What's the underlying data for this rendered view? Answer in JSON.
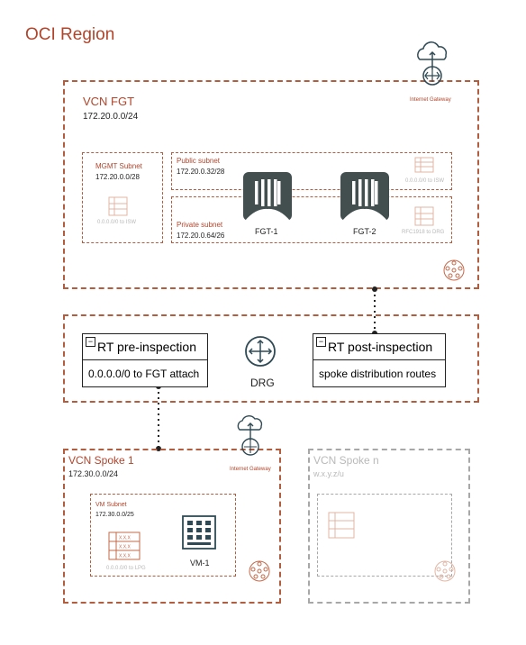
{
  "region": {
    "title": "OCI Region"
  },
  "vcn_fgt": {
    "title": "VCN FGT",
    "cidr": "172.20.0.0/24",
    "internet_gateway_label": "Internet Gateway",
    "mgmt_subnet": {
      "title": "MGMT Subnet",
      "cidr": "172.20.0.0/28",
      "route": "0.0.0.0/0 to ISW"
    },
    "public_subnet": {
      "title": "Public subnet",
      "cidr": "172.20.0.32/28",
      "route": "0.0.0.0/0 to ISW"
    },
    "private_subnet": {
      "title": "Private subnet",
      "cidr": "172.20.0.64/26",
      "route": "RFC1918 to DRG"
    },
    "fgt1_label": "FGT-1",
    "fgt2_label": "FGT-2"
  },
  "drg": {
    "label": "DRG",
    "rt_pre": {
      "title": "RT pre-inspection",
      "route": "0.0.0.0/0 to FGT attach"
    },
    "rt_post": {
      "title": "RT post-inspection",
      "route": "spoke distribution routes"
    }
  },
  "spoke1": {
    "title": "VCN Spoke 1",
    "cidr": "172.30.0.0/24",
    "internet_gateway_label": "Internet Gateway",
    "vm_subnet": {
      "title": "VM Subnet",
      "cidr": "172.30.0.0/25",
      "route": "0.0.0.0/0 to LPG"
    },
    "vm_label": "VM-1"
  },
  "spoken": {
    "title": "VCN Spoke n",
    "cidr": "w.x.y.z/u"
  },
  "table_cell_text": "X.X.X",
  "colors": {
    "accent": "#b1452b",
    "border": "#b25d3e",
    "fgt": "#434f4f",
    "icon_dark": "#2f4a55",
    "grey": "#a8a8a8"
  }
}
